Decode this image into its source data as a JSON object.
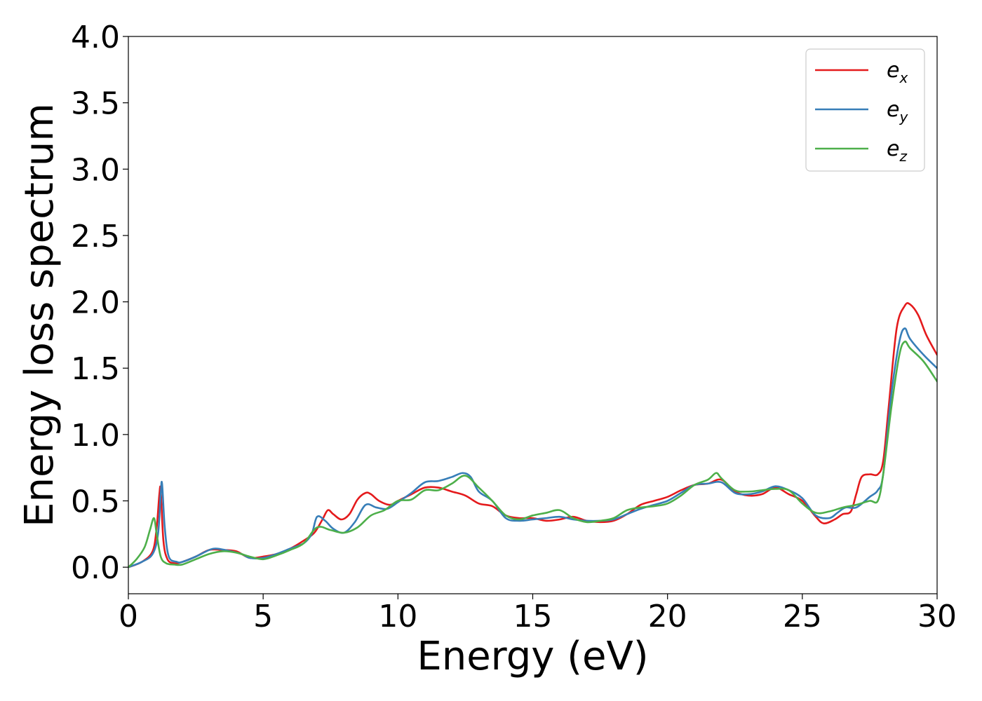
{
  "chart_data": {
    "type": "line",
    "xlabel": "Energy (eV)",
    "ylabel": "Energy loss spectrum",
    "xlim": [
      0,
      30
    ],
    "ylim": [
      -0.2,
      4.0
    ],
    "xticks": [
      0,
      5,
      10,
      15,
      20,
      25,
      30
    ],
    "yticks": [
      0.0,
      0.5,
      1.0,
      1.5,
      2.0,
      2.5,
      3.0,
      3.5,
      4.0
    ],
    "grid": false,
    "legend_position": "top-right",
    "series": [
      {
        "name": "e",
        "sub": "x",
        "color": "#e41a1c",
        "x": [
          0,
          0.5,
          0.9,
          1.05,
          1.15,
          1.2,
          1.3,
          1.45,
          1.7,
          2,
          2.5,
          3,
          3.5,
          4,
          4.5,
          5,
          5.5,
          6,
          6.5,
          6.9,
          7.2,
          7.4,
          7.6,
          7.9,
          8.2,
          8.5,
          8.8,
          9,
          9.3,
          9.7,
          10,
          10.5,
          11,
          11.5,
          12,
          12.5,
          13,
          13.5,
          14,
          14.5,
          15,
          15.5,
          16,
          16.5,
          17,
          17.5,
          18,
          18.5,
          19,
          19.5,
          20,
          20.5,
          21,
          21.5,
          22,
          22.5,
          23,
          23.5,
          24,
          24.5,
          25,
          25.5,
          25.8,
          26.2,
          26.5,
          26.8,
          27,
          27.2,
          27.5,
          27.8,
          28,
          28.2,
          28.5,
          28.8,
          29,
          29.3,
          29.6,
          30
        ],
        "y": [
          0,
          0.04,
          0.12,
          0.3,
          0.55,
          0.58,
          0.2,
          0.06,
          0.03,
          0.04,
          0.08,
          0.13,
          0.13,
          0.12,
          0.07,
          0.08,
          0.1,
          0.14,
          0.2,
          0.26,
          0.36,
          0.43,
          0.4,
          0.36,
          0.4,
          0.51,
          0.56,
          0.55,
          0.5,
          0.47,
          0.5,
          0.55,
          0.6,
          0.6,
          0.57,
          0.54,
          0.48,
          0.46,
          0.39,
          0.37,
          0.37,
          0.35,
          0.36,
          0.38,
          0.35,
          0.34,
          0.35,
          0.4,
          0.47,
          0.5,
          0.53,
          0.58,
          0.62,
          0.63,
          0.66,
          0.57,
          0.54,
          0.55,
          0.6,
          0.55,
          0.5,
          0.38,
          0.33,
          0.36,
          0.4,
          0.42,
          0.55,
          0.68,
          0.7,
          0.7,
          0.8,
          1.2,
          1.8,
          1.97,
          1.98,
          1.9,
          1.75,
          1.6
        ]
      },
      {
        "name": "e",
        "sub": "y",
        "color": "#377eb8",
        "x": [
          0,
          0.5,
          0.9,
          1.1,
          1.2,
          1.25,
          1.35,
          1.5,
          1.8,
          2,
          2.5,
          3,
          3.3,
          3.8,
          4.2,
          4.5,
          5,
          5.5,
          6,
          6.5,
          6.8,
          7,
          7.3,
          7.6,
          8,
          8.4,
          8.8,
          9.2,
          9.6,
          10,
          10.5,
          11,
          11.5,
          12,
          12.4,
          12.7,
          13,
          13.5,
          14,
          14.5,
          15,
          15.5,
          16,
          16.5,
          17,
          17.5,
          18,
          18.5,
          19,
          19.5,
          20,
          20.5,
          21,
          21.5,
          22,
          22.5,
          23,
          23.5,
          24,
          24.5,
          25,
          25.5,
          26,
          26.3,
          26.6,
          27,
          27.5,
          27.8,
          28,
          28.3,
          28.6,
          28.8,
          29,
          29.5,
          30
        ],
        "y": [
          0,
          0.04,
          0.1,
          0.25,
          0.55,
          0.63,
          0.3,
          0.08,
          0.04,
          0.04,
          0.08,
          0.13,
          0.14,
          0.12,
          0.1,
          0.07,
          0.07,
          0.1,
          0.14,
          0.18,
          0.25,
          0.38,
          0.35,
          0.29,
          0.26,
          0.34,
          0.47,
          0.45,
          0.44,
          0.49,
          0.56,
          0.64,
          0.65,
          0.68,
          0.71,
          0.68,
          0.57,
          0.5,
          0.37,
          0.35,
          0.36,
          0.37,
          0.38,
          0.36,
          0.35,
          0.35,
          0.36,
          0.4,
          0.44,
          0.47,
          0.5,
          0.56,
          0.62,
          0.63,
          0.64,
          0.56,
          0.55,
          0.57,
          0.61,
          0.58,
          0.52,
          0.39,
          0.37,
          0.41,
          0.45,
          0.45,
          0.53,
          0.58,
          0.7,
          1.3,
          1.7,
          1.8,
          1.72,
          1.6,
          1.5
        ]
      },
      {
        "name": "e",
        "sub": "z",
        "color": "#4daf4a",
        "x": [
          0,
          0.3,
          0.6,
          0.8,
          0.95,
          1.05,
          1.2,
          1.4,
          1.7,
          2,
          2.5,
          3,
          3.5,
          4,
          4.5,
          5,
          5.5,
          6,
          6.5,
          7,
          7.5,
          8,
          8.5,
          9,
          9.5,
          10,
          10.5,
          11,
          11.5,
          12,
          12.5,
          13,
          13.5,
          14,
          14.5,
          15,
          15.5,
          16,
          16.5,
          17,
          17.5,
          18,
          18.5,
          19,
          19.5,
          20,
          20.5,
          21,
          21.5,
          21.8,
          22,
          22.5,
          23,
          23.5,
          24,
          24.5,
          25,
          25.5,
          26,
          26.5,
          27,
          27.5,
          27.8,
          28,
          28.3,
          28.6,
          28.8,
          29,
          29.5,
          30
        ],
        "y": [
          0,
          0.06,
          0.15,
          0.28,
          0.37,
          0.25,
          0.08,
          0.03,
          0.02,
          0.02,
          0.06,
          0.1,
          0.12,
          0.11,
          0.08,
          0.06,
          0.09,
          0.13,
          0.18,
          0.3,
          0.28,
          0.26,
          0.3,
          0.39,
          0.43,
          0.5,
          0.51,
          0.58,
          0.58,
          0.63,
          0.69,
          0.6,
          0.5,
          0.39,
          0.36,
          0.39,
          0.41,
          0.43,
          0.37,
          0.34,
          0.35,
          0.37,
          0.43,
          0.45,
          0.46,
          0.48,
          0.54,
          0.62,
          0.66,
          0.71,
          0.67,
          0.58,
          0.57,
          0.58,
          0.59,
          0.58,
          0.48,
          0.41,
          0.42,
          0.45,
          0.47,
          0.5,
          0.5,
          0.7,
          1.2,
          1.6,
          1.7,
          1.65,
          1.55,
          1.4
        ]
      }
    ]
  }
}
